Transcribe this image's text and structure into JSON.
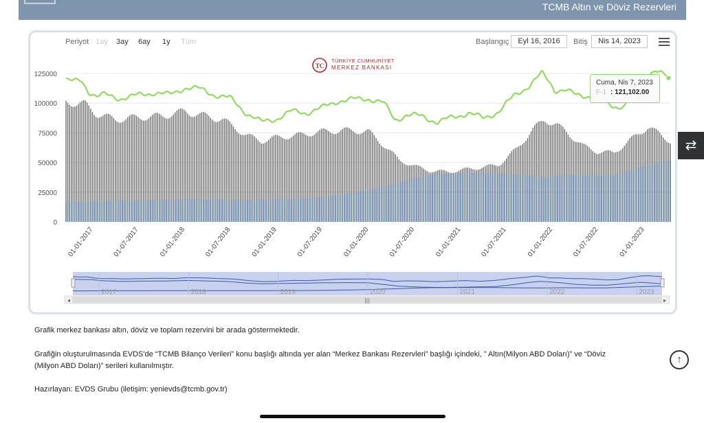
{
  "header": {
    "title": "TCMB Altın ve Döviz Rezervleri"
  },
  "toolbar": {
    "period_label": "Periyot",
    "ranges": [
      "1ay",
      "3ay",
      "6ay",
      "1y",
      "Tüm"
    ],
    "start_label": "Başlangıç",
    "start_date": "Eyl 16, 2016",
    "end_label": "Bitiş",
    "end_date": "Nis 14, 2023"
  },
  "logo": {
    "line1": "TÜRKİYE CUMHURİYET",
    "line2": "MERKEZ BANKASI"
  },
  "tooltip": {
    "date": "Cuma, Nis 7, 2023",
    "series": "F-1",
    "value": ": 121,102.00"
  },
  "colors": {
    "total_line": "#8fdc5c",
    "gray_bars": "#6e6e6e",
    "blue_bars": "#5e7ea6",
    "navigator_fill": "#c8d2ee"
  },
  "chart_data": {
    "type": "bar",
    "x_start": "2016-09-16",
    "x_end": "2023-04-14",
    "x_tick_labels": [
      "01-01-2017",
      "01-07-2017",
      "01-01-2018",
      "01-07-2018",
      "01-01-2019",
      "01-07-2019",
      "01-01-2020",
      "01-07-2020",
      "01-01-2021",
      "01-07-2021",
      "01-01-2022",
      "01-07-2022",
      "01-01-2023"
    ],
    "y_ticks": [
      0,
      25000,
      50000,
      75000,
      100000,
      125000
    ],
    "ylim": [
      0,
      140000
    ],
    "navigator_years": [
      "2017",
      "2018",
      "2019",
      "2020",
      "2021",
      "2022",
      "2023"
    ],
    "series": [
      {
        "name": "F-1",
        "kind": "line",
        "points": [
          [
            "2016-09-16",
            120000
          ],
          [
            "2016-10-15",
            118000
          ],
          [
            "2016-11-15",
            119000
          ],
          [
            "2016-12-15",
            110000
          ],
          [
            "2017-01-15",
            106000
          ],
          [
            "2017-02-15",
            107000
          ],
          [
            "2017-04-15",
            104000
          ],
          [
            "2017-06-15",
            106000
          ],
          [
            "2017-09-01",
            109000
          ],
          [
            "2017-11-01",
            107000
          ],
          [
            "2018-01-01",
            113000
          ],
          [
            "2018-03-01",
            112000
          ],
          [
            "2018-05-01",
            107000
          ],
          [
            "2018-07-01",
            104000
          ],
          [
            "2018-09-01",
            92000
          ],
          [
            "2018-11-01",
            84000
          ],
          [
            "2019-01-01",
            87000
          ],
          [
            "2019-03-01",
            93000
          ],
          [
            "2019-05-01",
            92000
          ],
          [
            "2019-07-01",
            96000
          ],
          [
            "2019-09-01",
            102000
          ],
          [
            "2019-11-01",
            103000
          ],
          [
            "2020-01-01",
            104000
          ],
          [
            "2020-03-01",
            100000
          ],
          [
            "2020-04-15",
            86000
          ],
          [
            "2020-06-01",
            90000
          ],
          [
            "2020-08-01",
            89000
          ],
          [
            "2020-10-01",
            84000
          ],
          [
            "2020-12-01",
            88000
          ],
          [
            "2021-02-01",
            92000
          ],
          [
            "2021-04-01",
            87000
          ],
          [
            "2021-06-01",
            93000
          ],
          [
            "2021-08-01",
            106000
          ],
          [
            "2021-10-01",
            115000
          ],
          [
            "2021-11-20",
            125000
          ],
          [
            "2021-12-20",
            118000
          ],
          [
            "2022-01-10",
            111000
          ],
          [
            "2022-02-20",
            111000
          ],
          [
            "2022-04-01",
            107000
          ],
          [
            "2022-06-01",
            106000
          ],
          [
            "2022-07-20",
            102000
          ],
          [
            "2022-09-01",
            97000
          ],
          [
            "2022-10-15",
            98000
          ],
          [
            "2022-12-01",
            113000
          ],
          [
            "2023-01-15",
            125000
          ],
          [
            "2023-02-15",
            128000
          ],
          [
            "2023-03-15",
            124000
          ],
          [
            "2023-04-07",
            121102
          ],
          [
            "2023-04-14",
            120000
          ]
        ]
      },
      {
        "name": "",
        "kind": "bar",
        "color": "gray",
        "points": [
          [
            "2016-09-16",
            101000
          ],
          [
            "2016-12-01",
            99000
          ],
          [
            "2017-01-15",
            91000
          ],
          [
            "2017-04-01",
            86000
          ],
          [
            "2017-07-01",
            88000
          ],
          [
            "2017-10-01",
            89000
          ],
          [
            "2018-01-01",
            93000
          ],
          [
            "2018-03-01",
            90000
          ],
          [
            "2018-06-01",
            86000
          ],
          [
            "2018-09-01",
            73000
          ],
          [
            "2018-11-01",
            68000
          ],
          [
            "2019-01-01",
            71000
          ],
          [
            "2019-04-01",
            73000
          ],
          [
            "2019-07-01",
            76000
          ],
          [
            "2019-10-01",
            77000
          ],
          [
            "2020-01-01",
            76000
          ],
          [
            "2020-03-15",
            62000
          ],
          [
            "2020-05-01",
            52000
          ],
          [
            "2020-07-01",
            47000
          ],
          [
            "2020-09-01",
            43000
          ],
          [
            "2020-11-15",
            42000
          ],
          [
            "2021-01-15",
            44000
          ],
          [
            "2021-04-01",
            46000
          ],
          [
            "2021-06-01",
            48000
          ],
          [
            "2021-08-15",
            62000
          ],
          [
            "2021-10-15",
            78000
          ],
          [
            "2021-12-01",
            86000
          ],
          [
            "2022-01-15",
            82000
          ],
          [
            "2022-03-01",
            75000
          ],
          [
            "2022-05-01",
            64000
          ],
          [
            "2022-07-01",
            59000
          ],
          [
            "2022-09-01",
            58000
          ],
          [
            "2022-11-01",
            68000
          ],
          [
            "2023-01-15",
            80000
          ],
          [
            "2023-03-01",
            74000
          ],
          [
            "2023-04-14",
            68000
          ]
        ]
      },
      {
        "name": "",
        "kind": "bar",
        "color": "blue",
        "points": [
          [
            "2016-09-16",
            17000
          ],
          [
            "2017-06-01",
            18000
          ],
          [
            "2018-01-01",
            19000
          ],
          [
            "2018-09-01",
            18500
          ],
          [
            "2019-06-01",
            20000
          ],
          [
            "2019-12-01",
            25000
          ],
          [
            "2020-03-01",
            30000
          ],
          [
            "2020-06-01",
            35000
          ],
          [
            "2020-09-01",
            40000
          ],
          [
            "2021-01-01",
            41000
          ],
          [
            "2021-06-01",
            41000
          ],
          [
            "2021-12-01",
            38000
          ],
          [
            "2022-03-01",
            40000
          ],
          [
            "2022-06-01",
            39000
          ],
          [
            "2022-09-01",
            39000
          ],
          [
            "2022-12-01",
            45000
          ],
          [
            "2023-03-01",
            50000
          ],
          [
            "2023-04-14",
            52000
          ]
        ]
      }
    ]
  },
  "body": {
    "p1": "Grafik merkez bankası altın, döviz ve toplam rezervini bir arada göstermektedir.",
    "p2_line1": "Grafiğin oluşturulmasında EVDS'de “TCMB Bilanço Verileri” konu başlığı altında yer alan “Merkez Bankası Rezervleri” başlığı içindeki, ” Altın(Milyon ABD Doları)” ve “Döviz",
    "p2_line2": "(Milyon ABD Doları)” serileri kullanılmıştır.",
    "p3": "Hazırlayan: EVDS Grubu  (iletişim: yenievds@tcmb.gov.tr)"
  }
}
